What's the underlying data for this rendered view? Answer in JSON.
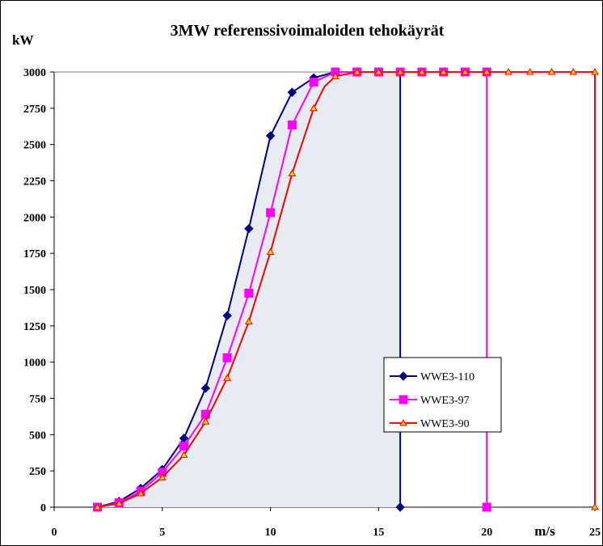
{
  "chart_data": {
    "type": "line",
    "title": "3MW referenssivoimaloiden tehokäyrät",
    "ylabel": "kW",
    "xlabel": "m/s",
    "xlim": [
      0,
      25
    ],
    "ylim": [
      0,
      3000
    ],
    "x_ticks": [
      0,
      5,
      10,
      15,
      20,
      25
    ],
    "y_ticks": [
      0,
      250,
      500,
      750,
      1000,
      1250,
      1500,
      1750,
      2000,
      2250,
      2500,
      2750,
      3000
    ],
    "legend_position": "lower-right",
    "series": [
      {
        "name": "WWE3-110",
        "color": "#000080",
        "marker": "diamond",
        "x": [
          2,
          3,
          4,
          5,
          6,
          7,
          8,
          9,
          10,
          11,
          12,
          13,
          14,
          15,
          16,
          16
        ],
        "y": [
          0,
          40,
          130,
          260,
          475,
          820,
          1320,
          1920,
          2560,
          2860,
          2960,
          3000,
          3000,
          3000,
          3000,
          0
        ],
        "filled": true
      },
      {
        "name": "WWE3-97",
        "color": "#ff00ff",
        "marker": "square",
        "x": [
          2,
          3,
          4,
          5,
          6,
          7,
          8,
          9,
          10,
          11,
          12,
          13,
          14,
          15,
          16,
          17,
          18,
          19,
          20,
          20
        ],
        "y": [
          0,
          30,
          110,
          240,
          420,
          640,
          1030,
          1475,
          2030,
          2635,
          2930,
          3000,
          3000,
          3000,
          3000,
          3000,
          3000,
          3000,
          3000,
          0
        ]
      },
      {
        "name": "WWE3-90",
        "color": "#ff0000",
        "marker": "triangle",
        "marker_fill": "#ffcc00",
        "x": [
          2,
          3,
          4,
          5,
          6,
          7,
          8,
          9,
          10,
          11,
          12,
          12.5,
          13,
          14,
          15,
          16,
          17,
          18,
          19,
          20,
          21,
          22,
          23,
          24,
          25,
          25
        ],
        "y": [
          0,
          25,
          95,
          205,
          360,
          590,
          890,
          1280,
          1760,
          2300,
          2750,
          2900,
          2970,
          3000,
          3000,
          3000,
          3000,
          3000,
          3000,
          3000,
          3000,
          3000,
          3000,
          3000,
          3000,
          0
        ]
      }
    ]
  }
}
